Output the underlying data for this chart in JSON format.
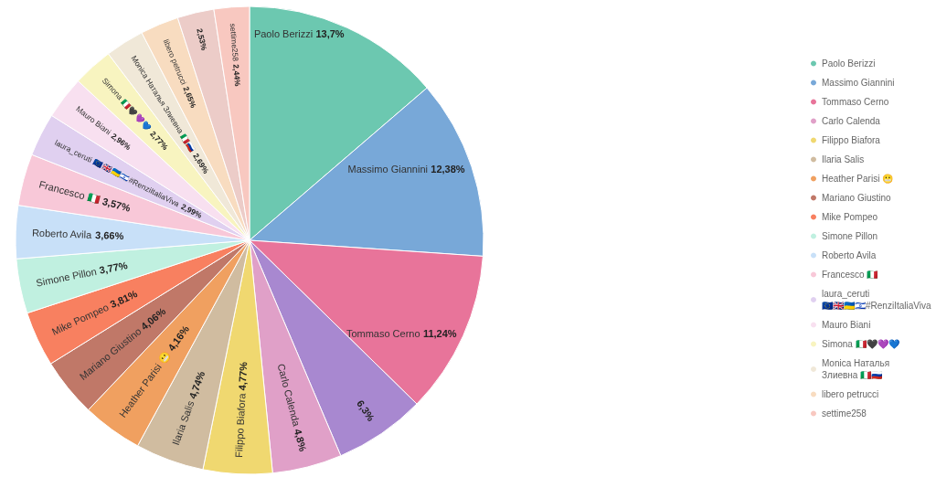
{
  "chart_data": {
    "type": "pie",
    "categories": [
      "Paolo Berizzi",
      "Massimo Giannini",
      "Tommaso Cerno",
      null,
      "Carlo Calenda",
      "Filippo Biafora",
      "Ilaria Salis",
      "Heather Parisi 😬",
      "Mariano Giustino",
      "Mike Pompeo",
      "Simone Pillon",
      "Roberto Avila",
      "Francesco 🇮🇹",
      "laura_ceruti 🇪🇺🇬🇧🇺🇦🇮🇱#RenziItaliaViva",
      "Mauro Biani",
      "Simona 🇮🇹🖤💜💙",
      "Monica Наталья Злиевна 🇮🇹🇷🇺",
      "libero petrucci",
      null,
      "settime258"
    ],
    "values": [
      13.7,
      12.38,
      11.24,
      6.3,
      4.8,
      4.77,
      4.74,
      4.16,
      4.06,
      3.81,
      3.77,
      3.66,
      3.57,
      2.99,
      2.96,
      2.77,
      2.69,
      2.65,
      2.53,
      2.44
    ],
    "value_labels": [
      "13,7%",
      "12,38%",
      "11,24%",
      "6,3%",
      "4,8%",
      "4,77%",
      "4,74%",
      "4,16%",
      "4,06%",
      "3,81%",
      "3,77%",
      "3,66%",
      "3,57%",
      "2,99%",
      "2,96%",
      "2,77%",
      "2,69%",
      "2,65%",
      "2,53%",
      "2,44%"
    ],
    "colors": [
      "#6cc8b0",
      "#78a8d8",
      "#e8749a",
      "#a888d0",
      "#e0a0c8",
      "#f0d870",
      "#d0bca0",
      "#f0a060",
      "#c07868",
      "#f88060",
      "#c0f0e0",
      "#c8e0f8",
      "#f8c8d8",
      "#e0d0f0",
      "#f8e0f0",
      "#f8f4c0",
      "#f0e8d8",
      "#f8dcc0",
      "#ecccc8",
      "#f8c8c0"
    ],
    "legend": "right"
  }
}
